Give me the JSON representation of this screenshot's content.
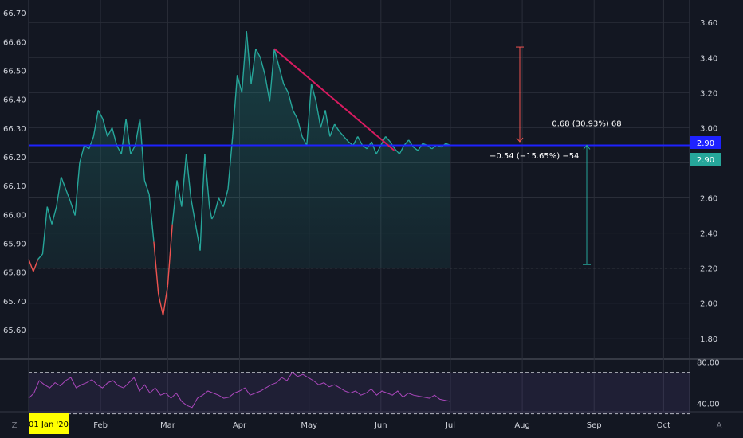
{
  "chart_data": [
    {
      "type": "line",
      "title": "",
      "left_axis": {
        "ylim": [
          65.55,
          66.72
        ],
        "ticks": [
          "66.70",
          "66.60",
          "66.50",
          "66.40",
          "66.30",
          "66.20",
          "66.10",
          "66.00",
          "65.90",
          "65.80",
          "65.70",
          "65.60"
        ]
      },
      "right_axis": {
        "ylim": [
          1.74,
          3.66
        ],
        "ticks": [
          "3.60",
          "3.40",
          "3.20",
          "3.00",
          "2.80",
          "2.60",
          "2.40",
          "2.20",
          "2.00",
          "1.80"
        ]
      },
      "x_axis": {
        "start_label": "01 Jan '20",
        "tick_labels": [
          "Feb",
          "Mar",
          "Apr",
          "May",
          "Jun",
          "Jul",
          "Aug",
          "Sep",
          "Oct"
        ]
      },
      "series": [
        {
          "x_day": [
            0,
            2,
            4,
            6,
            8,
            10,
            12,
            14,
            16,
            18,
            20,
            22,
            24,
            26,
            28,
            30,
            32,
            34,
            36,
            38,
            40,
            42,
            44,
            46,
            48,
            50,
            52,
            54,
            56,
            58,
            60,
            62,
            64,
            66,
            68,
            70,
            72,
            74,
            75,
            76,
            77,
            78,
            79,
            80,
            82,
            84,
            86,
            88,
            90,
            92,
            94,
            96,
            98,
            100,
            102,
            104,
            106,
            108,
            110,
            112,
            114,
            116,
            118,
            120,
            122,
            124,
            126,
            128,
            130,
            132,
            134,
            136,
            138,
            140,
            142,
            144,
            146,
            148,
            150,
            152,
            154,
            156,
            158,
            160,
            162,
            164,
            166,
            168,
            170,
            172,
            174,
            176,
            178,
            180,
            182
          ],
          "values": [
            2.25,
            2.18,
            2.25,
            2.28,
            2.55,
            2.45,
            2.55,
            2.72,
            2.65,
            2.58,
            2.5,
            2.8,
            2.9,
            2.88,
            2.95,
            3.1,
            3.05,
            2.95,
            3.0,
            2.9,
            2.85,
            3.05,
            2.85,
            2.9,
            3.05,
            2.7,
            2.62,
            2.35,
            2.05,
            1.93,
            2.1,
            2.45,
            2.7,
            2.55,
            2.85,
            2.6,
            2.45,
            2.3,
            2.6,
            2.85,
            2.7,
            2.55,
            2.48,
            2.5,
            2.6,
            2.55,
            2.65,
            2.95,
            3.3,
            3.2,
            3.55,
            3.25,
            3.45,
            3.4,
            3.3,
            3.15,
            3.45,
            3.35,
            3.25,
            3.2,
            3.1,
            3.05,
            2.95,
            2.9,
            3.25,
            3.15,
            3.0,
            3.1,
            2.95,
            3.02,
            2.98,
            2.95,
            2.92,
            2.9,
            2.95,
            2.9,
            2.88,
            2.92,
            2.85,
            2.9,
            2.95,
            2.92,
            2.88,
            2.85,
            2.9,
            2.93,
            2.89,
            2.87,
            2.91,
            2.9,
            2.88,
            2.9,
            2.89,
            2.91,
            2.9
          ]
        }
      ],
      "value_label": "2.90",
      "horizontal_level": "2.90",
      "annotations": [
        {
          "text": "0.68 (30.93%) 68",
          "from": 2.22,
          "to": 2.9
        },
        {
          "text": "−0.54 (−15.65%) −54",
          "from": 3.46,
          "to": 2.92
        }
      ],
      "trendline": {
        "from": [
          106,
          3.45
        ],
        "to": [
          144,
          2.88
        ]
      }
    },
    {
      "type": "line",
      "title": "",
      "ylim": [
        32,
        82
      ],
      "ticks": [
        "80.00",
        "40.00"
      ],
      "bands": [
        70,
        30
      ],
      "series": [
        {
          "values": [
            45,
            50,
            62,
            58,
            55,
            60,
            57,
            62,
            65,
            55,
            58,
            60,
            63,
            58,
            55,
            60,
            62,
            57,
            55,
            60,
            65,
            52,
            58,
            50,
            55,
            48,
            50,
            45,
            50,
            42,
            38,
            36,
            45,
            48,
            52,
            50,
            48,
            45,
            46,
            50,
            52,
            55,
            48,
            50,
            52,
            55,
            58,
            60,
            65,
            62,
            70,
            66,
            68,
            65,
            62,
            58,
            60,
            56,
            58,
            55,
            52,
            50,
            52,
            48,
            50,
            54,
            48,
            52,
            50,
            48,
            52,
            46,
            50,
            48,
            47,
            46,
            45,
            48,
            44,
            43,
            42
          ]
        }
      ]
    }
  ],
  "ui": {
    "left_corner": "Z",
    "right_corner": "A"
  }
}
